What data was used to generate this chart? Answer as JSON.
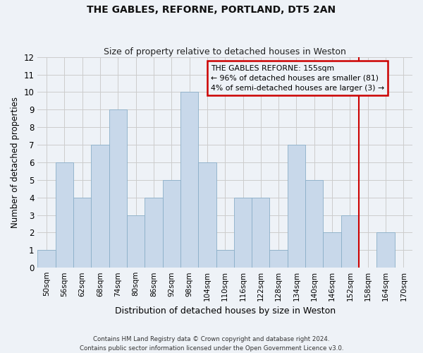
{
  "title": "THE GABLES, REFORNE, PORTLAND, DT5 2AN",
  "subtitle": "Size of property relative to detached houses in Weston",
  "xlabel": "Distribution of detached houses by size in Weston",
  "ylabel": "Number of detached properties",
  "footer_line1": "Contains HM Land Registry data © Crown copyright and database right 2024.",
  "footer_line2": "Contains public sector information licensed under the Open Government Licence v3.0.",
  "categories": [
    "50sqm",
    "56sqm",
    "62sqm",
    "68sqm",
    "74sqm",
    "80sqm",
    "86sqm",
    "92sqm",
    "98sqm",
    "104sqm",
    "110sqm",
    "116sqm",
    "122sqm",
    "128sqm",
    "134sqm",
    "140sqm",
    "146sqm",
    "152sqm",
    "158sqm",
    "164sqm",
    "170sqm"
  ],
  "values": [
    1,
    6,
    4,
    7,
    9,
    3,
    4,
    5,
    10,
    6,
    1,
    4,
    4,
    1,
    7,
    5,
    2,
    3,
    0,
    2,
    0
  ],
  "bar_color": "#c8d8ea",
  "bar_edge_color": "#8aafc8",
  "grid_color": "#cccccc",
  "bg_color": "#eef2f7",
  "vline_color": "#cc0000",
  "annotation_text": "THE GABLES REFORNE: 155sqm\n← 96% of detached houses are smaller (81)\n4% of semi-detached houses are larger (3) →",
  "annotation_box_color": "#cc0000",
  "ylim": [
    0,
    12
  ],
  "yticks": [
    0,
    1,
    2,
    3,
    4,
    5,
    6,
    7,
    8,
    9,
    10,
    11,
    12
  ]
}
